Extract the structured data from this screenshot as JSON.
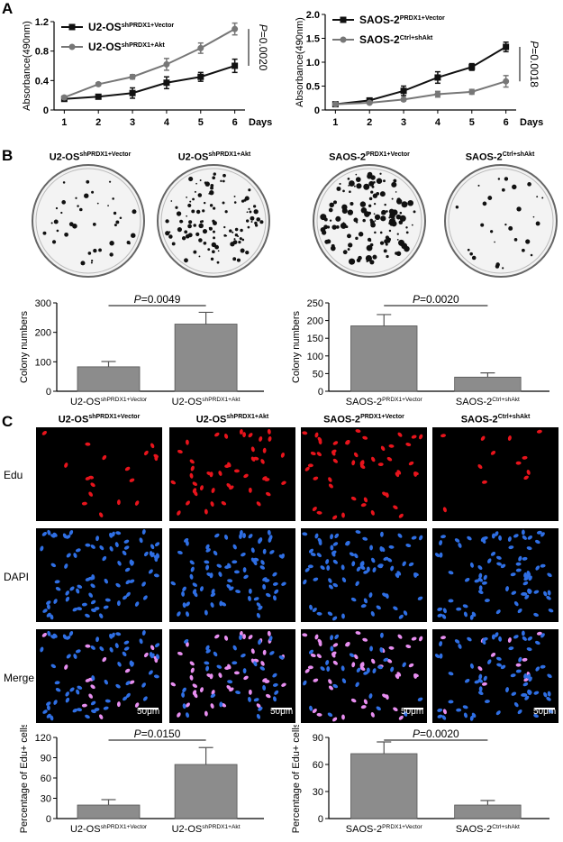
{
  "panels": {
    "a": "A",
    "b": "B",
    "c": "C"
  },
  "colors": {
    "black_series": "#111111",
    "gray_series": "#777777",
    "bar_fill": "#8c8c8c",
    "edu": "#e8141c",
    "dapi": "#2f6fe4",
    "merge": "#e88ef0"
  },
  "chart_data": [
    {
      "type": "line",
      "ylabel": "Absorbance(490nm)",
      "xlabel": "Days",
      "x": [
        1,
        2,
        3,
        4,
        5,
        6
      ],
      "ylim": [
        0,
        1.2
      ],
      "yticks": [
        "0",
        "0.4",
        "0.8",
        "1.2"
      ],
      "legend_position": "top-left",
      "pvalue": "P=0.0020",
      "series": [
        {
          "name_main": "U2-OS",
          "name_sup": "shPRDX1+Vector",
          "values": [
            0.15,
            0.18,
            0.23,
            0.37,
            0.45,
            0.6
          ],
          "errors": [
            0.02,
            0.02,
            0.07,
            0.08,
            0.06,
            0.09
          ],
          "color": "#111111",
          "marker": "square"
        },
        {
          "name_main": "U2-OS",
          "name_sup": "shPRDX1+Akt",
          "values": [
            0.17,
            0.35,
            0.45,
            0.62,
            0.84,
            1.1
          ],
          "errors": [
            0.02,
            0.02,
            0.03,
            0.08,
            0.07,
            0.08
          ],
          "color": "#777777",
          "marker": "circle"
        }
      ]
    },
    {
      "type": "line",
      "ylabel": "Absorbance(490nm)",
      "xlabel": "Days",
      "x": [
        1,
        2,
        3,
        4,
        5,
        6
      ],
      "ylim": [
        0,
        2.0
      ],
      "yticks": [
        "0",
        "0.5",
        "1.0",
        "1.5",
        "2.0"
      ],
      "legend_position": "top-left",
      "pvalue": "P=0.0018",
      "series": [
        {
          "name_main": "SAOS-2",
          "name_sup": "PRDX1+Vector",
          "values": [
            0.12,
            0.2,
            0.4,
            0.68,
            0.9,
            1.32
          ],
          "errors": [
            0.02,
            0.03,
            0.1,
            0.12,
            0.07,
            0.1
          ],
          "color": "#111111",
          "marker": "square"
        },
        {
          "name_main": "SAOS-2",
          "name_sup": "Ctrl+shAkt",
          "values": [
            0.12,
            0.15,
            0.22,
            0.33,
            0.38,
            0.6
          ],
          "errors": [
            0.02,
            0.02,
            0.03,
            0.06,
            0.05,
            0.12
          ],
          "color": "#777777",
          "marker": "circle"
        }
      ]
    },
    {
      "type": "bar",
      "ylabel": "Colony numbers",
      "ylim": [
        0,
        300
      ],
      "yticks": [
        "0",
        "100",
        "200",
        "300"
      ],
      "pvalue": "P=0.0049",
      "categories": [
        {
          "main": "U2-OS",
          "sup": "shPRDX1+Vector"
        },
        {
          "main": "U2-OS",
          "sup": "shPRDX1+Akt"
        }
      ],
      "values": [
        83,
        228
      ],
      "errors": [
        18,
        40
      ]
    },
    {
      "type": "bar",
      "ylabel": "Colony numbers",
      "ylim": [
        0,
        250
      ],
      "yticks": [
        "0",
        "50",
        "100",
        "150",
        "200",
        "250"
      ],
      "pvalue": "P=0.0020",
      "categories": [
        {
          "main": "SAOS-2",
          "sup": "PRDX1+Vector"
        },
        {
          "main": "SAOS-2",
          "sup": "Ctrl+shAkt"
        }
      ],
      "values": [
        185,
        40
      ],
      "errors": [
        32,
        12
      ]
    },
    {
      "type": "bar",
      "ylabel": "Percentage of Edu+ cells",
      "ylim": [
        0,
        120
      ],
      "yticks": [
        "0",
        "30",
        "60",
        "90",
        "120"
      ],
      "pvalue": "P=0.0150",
      "categories": [
        {
          "main": "U2-OS",
          "sup": "shPRDX1+Vector"
        },
        {
          "main": "U2-OS",
          "sup": "shPRDX1+Akt"
        }
      ],
      "values": [
        20,
        80
      ],
      "errors": [
        8,
        25
      ]
    },
    {
      "type": "bar",
      "ylabel": "Percentage of Edu+ cells",
      "ylim": [
        0,
        90
      ],
      "yticks": [
        "0",
        "30",
        "60",
        "90"
      ],
      "pvalue": "P=0.0020",
      "categories": [
        {
          "main": "SAOS-2",
          "sup": "PRDX1+Vector"
        },
        {
          "main": "SAOS-2",
          "sup": "Ctrl+shAkt"
        }
      ],
      "values": [
        72,
        15
      ],
      "errors": [
        13,
        5
      ]
    }
  ],
  "colony": {
    "labels": [
      {
        "main": "U2-OS",
        "sup": "shPRDX1+Vector"
      },
      {
        "main": "U2-OS",
        "sup": "shPRDX1+Akt"
      },
      {
        "main": "SAOS-2",
        "sup": "PRDX1+Vector"
      },
      {
        "main": "SAOS-2",
        "sup": "Ctrl+shAkt"
      }
    ],
    "density": [
      40,
      110,
      140,
      30
    ]
  },
  "microscopy": {
    "columns": [
      {
        "main": "U2-OS",
        "sup": "shPRDX1+Vector"
      },
      {
        "main": "U2-OS",
        "sup": "shPRDX1+Akt"
      },
      {
        "main": "SAOS-2",
        "sup": "PRDX1+Vector"
      },
      {
        "main": "SAOS-2",
        "sup": "Ctrl+shAkt"
      }
    ],
    "rows": [
      "Edu",
      "DAPI",
      "Merge"
    ],
    "edu_counts": [
      18,
      45,
      50,
      12
    ],
    "scale_bar": "50μm"
  }
}
